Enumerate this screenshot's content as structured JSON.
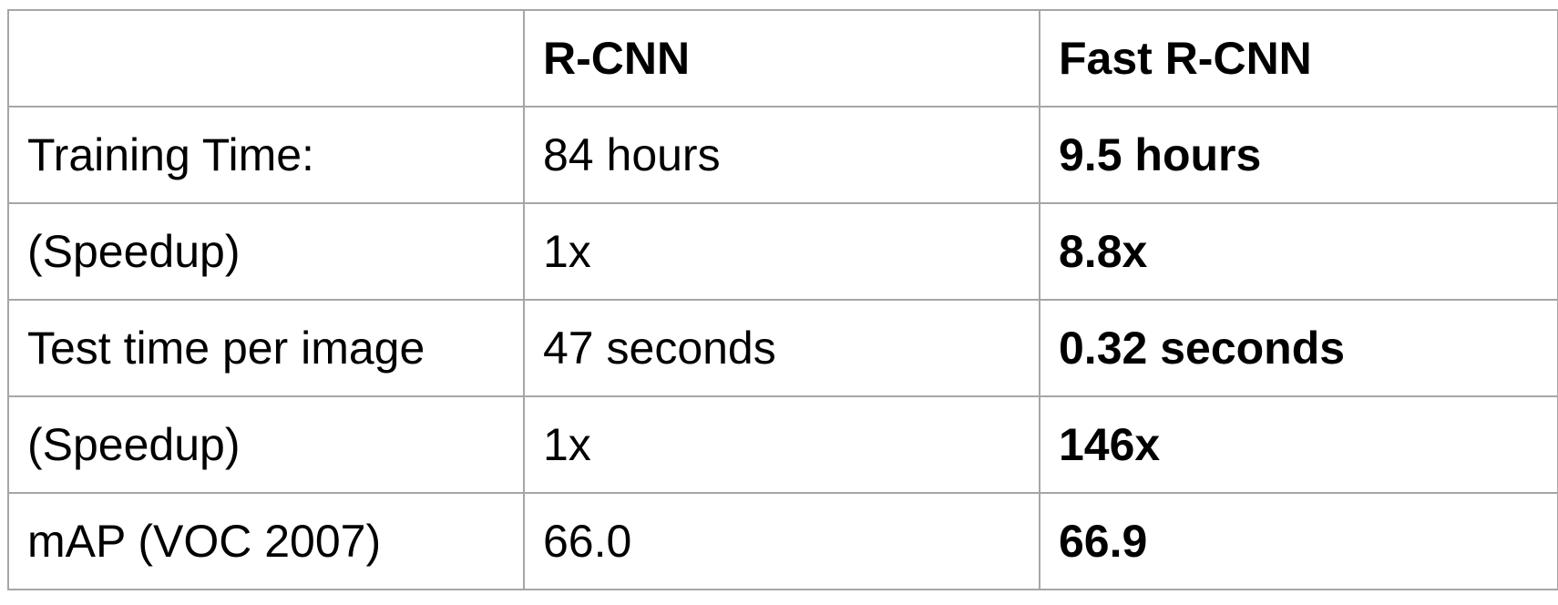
{
  "table": {
    "header": [
      "",
      "R-CNN",
      "Fast R-CNN"
    ],
    "rows": [
      [
        "Training Time:",
        "84 hours",
        "9.5 hours"
      ],
      [
        "(Speedup)",
        "1x",
        "8.8x"
      ],
      [
        "Test time per image",
        "47 seconds",
        "0.32 seconds"
      ],
      [
        "(Speedup)",
        "1x",
        "146x"
      ],
      [
        "mAP (VOC 2007)",
        "66.0",
        "66.9"
      ]
    ]
  },
  "colors": {
    "border": "#a6a6a6",
    "text": "#000000",
    "background": "#ffffff"
  }
}
